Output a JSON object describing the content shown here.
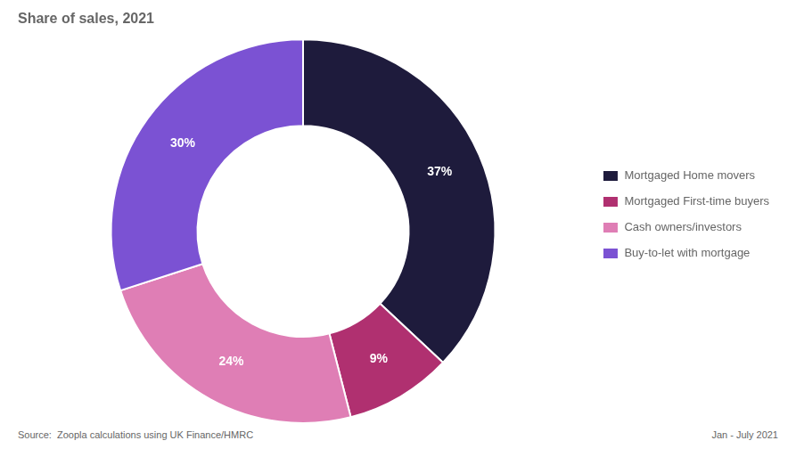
{
  "chart_data": {
    "type": "doughnut",
    "title": "Share of sales, 2021",
    "categories": [
      "Mortgaged Home movers",
      "Mortgaged First-time buyers",
      "Cash owners/investors",
      "Buy-to-let with mortgage"
    ],
    "values": [
      37,
      9,
      24,
      30
    ],
    "value_labels": [
      "37%",
      "9%",
      "24%",
      "30%"
    ],
    "data_labels": true,
    "colors": [
      "#1e1b3c",
      "#b03070",
      "#df7eb5",
      "#7b52d3"
    ],
    "legend": "right",
    "annotations": [
      "Source:  Zoopla calculations using UK Finance/HMRC",
      "Jan - July 2021"
    ]
  }
}
